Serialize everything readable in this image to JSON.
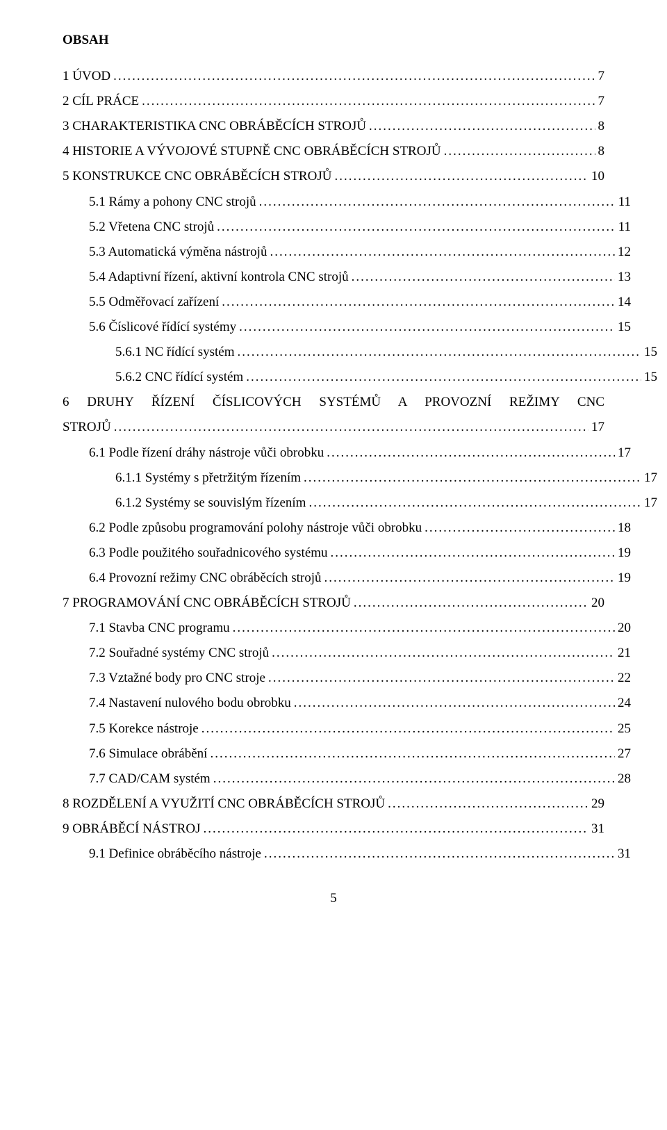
{
  "heading": "OBSAH",
  "page_number": "5",
  "toc": [
    {
      "indent": 0,
      "label": "1   ÚVOD",
      "page": "7"
    },
    {
      "indent": 0,
      "label": "2   CÍL PRÁCE",
      "page": "7"
    },
    {
      "indent": 0,
      "label": "3   CHARAKTERISTIKA CNC OBRÁBĚCÍCH STROJŮ",
      "page": "8"
    },
    {
      "indent": 0,
      "label": "4   HISTORIE A VÝVOJOVÉ STUPNĚ CNC OBRÁBĚCÍCH  STROJŮ",
      "page": "8"
    },
    {
      "indent": 0,
      "label": "5   KONSTRUKCE CNC OBRÁBĚCÍCH STROJŮ",
      "page": "10"
    },
    {
      "indent": 1,
      "label": "5.1   Rámy a pohony CNC strojů",
      "page": "11"
    },
    {
      "indent": 1,
      "label": "5.2   Vřetena CNC strojů",
      "page": "11"
    },
    {
      "indent": 1,
      "label": "5.3   Automatická výměna nástrojů",
      "page": "12"
    },
    {
      "indent": 1,
      "label": "5.4   Adaptivní řízení, aktivní kontrola CNC strojů",
      "page": "13"
    },
    {
      "indent": 1,
      "label": "5.5   Odměřovací zařízení",
      "page": "14"
    },
    {
      "indent": 1,
      "label": "5.6   Číslicové řídící systémy",
      "page": "15"
    },
    {
      "indent": 2,
      "label": "5.6.1   NC řídící systém",
      "page": "15"
    },
    {
      "indent": 2,
      "label": "5.6.2   CNC řídící systém",
      "page": "15"
    },
    {
      "indent": 0,
      "label": "6   DRUHY ŘÍZENÍ ČÍSLICOVÝCH SYSTÉMŮ A PROVOZNÍ   REŽIMY CNC",
      "page": null,
      "nowrap_line": true
    },
    {
      "indent": 0,
      "label": "STROJŮ",
      "page": "17"
    },
    {
      "indent": 1,
      "label": "6.1   Podle řízení dráhy nástroje vůči obrobku",
      "page": "17"
    },
    {
      "indent": 2,
      "label": "6.1.1   Systémy s přetržitým řízením",
      "page": "17"
    },
    {
      "indent": 2,
      "label": "6.1.2   Systémy se souvislým řízením",
      "page": "17"
    },
    {
      "indent": 1,
      "label": "6.2   Podle způsobu programování polohy nástroje vůči obrobku",
      "page": "18"
    },
    {
      "indent": 1,
      "label": "6.3   Podle použitého souřadnicového systému",
      "page": "19"
    },
    {
      "indent": 1,
      "label": "6.4   Provozní režimy CNC obráběcích strojů",
      "page": "19"
    },
    {
      "indent": 0,
      "label": "7   PROGRAMOVÁNÍ CNC OBRÁBĚCÍCH STROJŮ",
      "page": "20"
    },
    {
      "indent": 1,
      "label": "7.1   Stavba CNC programu",
      "page": "20"
    },
    {
      "indent": 1,
      "label": "7.2   Souřadné systémy CNC strojů",
      "page": "21"
    },
    {
      "indent": 1,
      "label": "7.3   Vztažné body pro CNC stroje",
      "page": "22"
    },
    {
      "indent": 1,
      "label": "7.4   Nastavení nulového bodu obrobku",
      "page": "24"
    },
    {
      "indent": 1,
      "label": "7.5   Korekce nástroje",
      "page": "25"
    },
    {
      "indent": 1,
      "label": "7.6   Simulace obrábění",
      "page": "27"
    },
    {
      "indent": 1,
      "label": "7.7   CAD/CAM systém",
      "page": "28"
    },
    {
      "indent": 0,
      "label": "8   ROZDĚLENÍ A VYUŽITÍ CNC OBRÁBĚCÍCH STROJŮ",
      "page": "29"
    },
    {
      "indent": 0,
      "label": "9   OBRÁBĚCÍ NÁSTROJ",
      "page": "31"
    },
    {
      "indent": 1,
      "label": "9.1   Definice obráběcího nástroje",
      "page": "31"
    }
  ]
}
